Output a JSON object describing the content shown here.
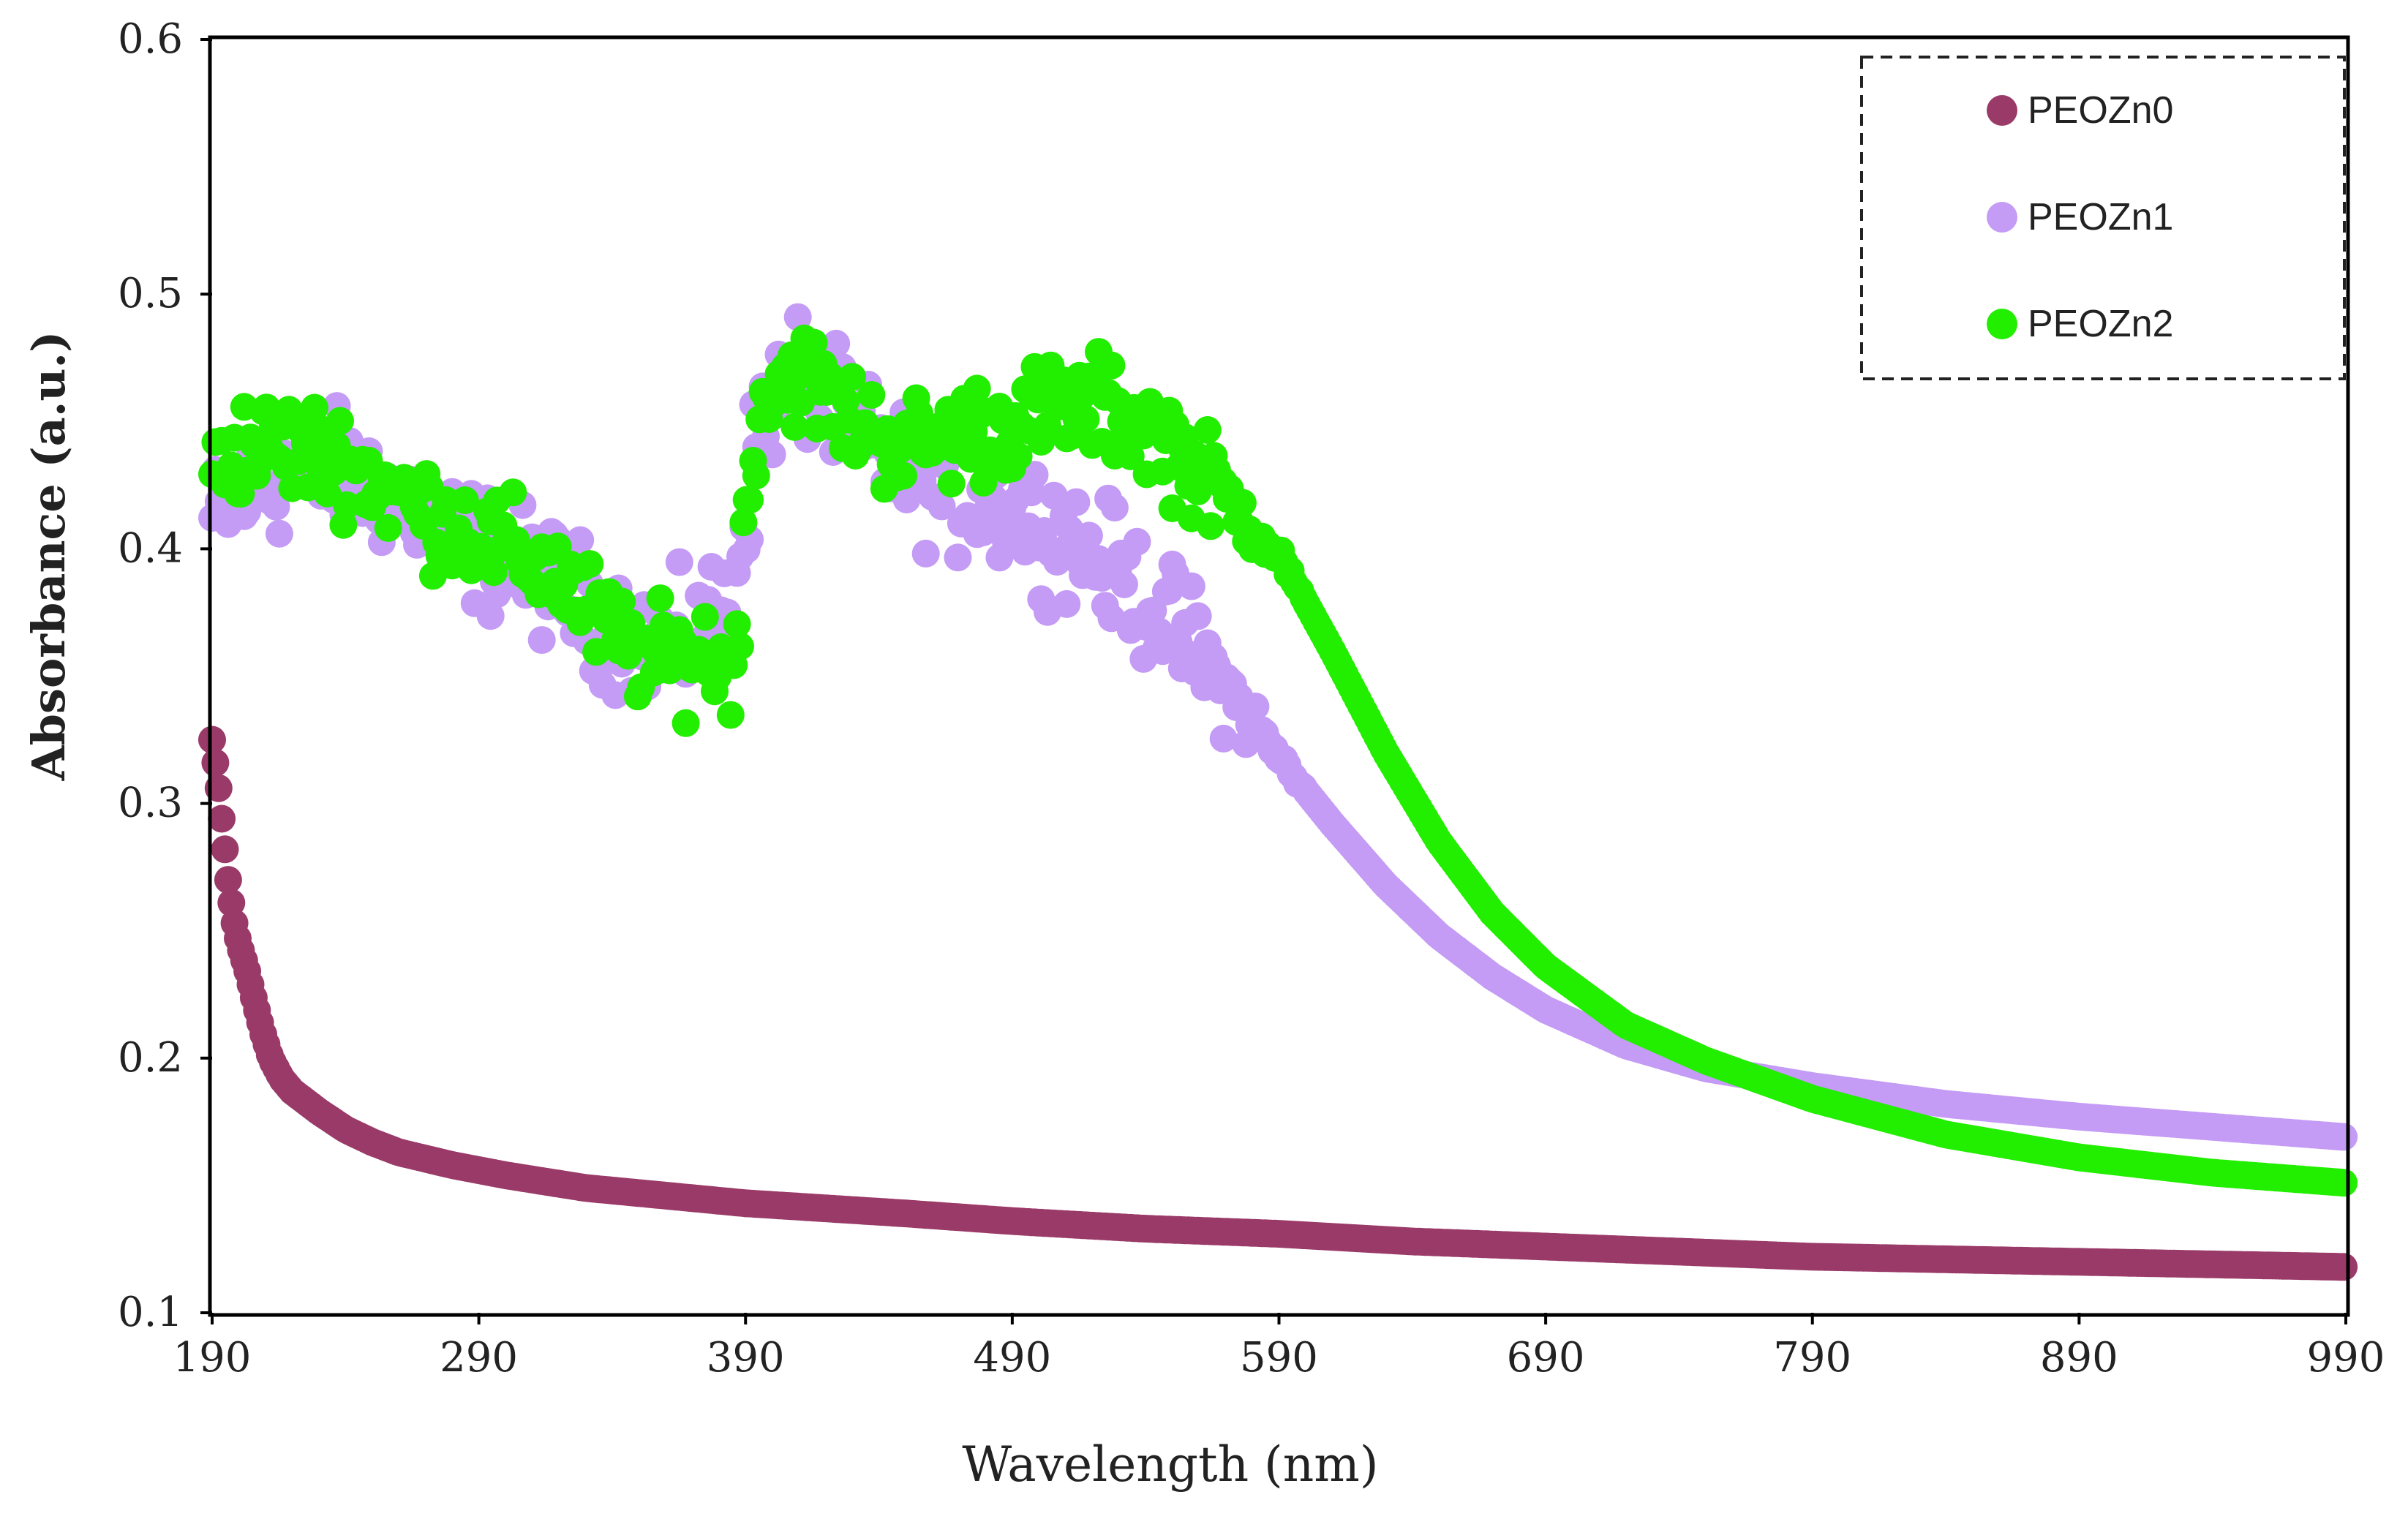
{
  "chart_data": {
    "type": "scatter",
    "title": "",
    "xlabel": "Wavelength (nm)",
    "ylabel": "Absorbance (a.u.)",
    "xlim": [
      190,
      990
    ],
    "ylim": [
      0.1,
      0.6
    ],
    "xticks": [
      190,
      290,
      390,
      490,
      590,
      690,
      790,
      890,
      990
    ],
    "yticks": [
      0.1,
      0.2,
      0.3,
      0.4,
      0.5,
      0.6
    ],
    "xtick_labels": [
      "190",
      "290",
      "390",
      "490",
      "590",
      "690",
      "790",
      "890",
      "990"
    ],
    "ytick_labels": [
      "0.1",
      "0.2",
      "0.3",
      "0.4",
      "0.5",
      "0.6"
    ],
    "grid": false,
    "legend_position": "top-right",
    "series": [
      {
        "name": "PEOZn0",
        "color": "#9a3a68",
        "noise": 0,
        "points": [
          [
            190,
            0.325
          ],
          [
            192,
            0.31
          ],
          [
            194,
            0.29
          ],
          [
            196,
            0.27
          ],
          [
            198,
            0.255
          ],
          [
            200,
            0.245
          ],
          [
            203,
            0.235
          ],
          [
            206,
            0.222
          ],
          [
            209,
            0.21
          ],
          [
            212,
            0.2
          ],
          [
            216,
            0.192
          ],
          [
            220,
            0.187
          ],
          [
            230,
            0.179
          ],
          [
            240,
            0.172
          ],
          [
            250,
            0.167
          ],
          [
            260,
            0.163
          ],
          [
            280,
            0.158
          ],
          [
            300,
            0.154
          ],
          [
            330,
            0.149
          ],
          [
            360,
            0.146
          ],
          [
            390,
            0.143
          ],
          [
            420,
            0.141
          ],
          [
            450,
            0.139
          ],
          [
            490,
            0.136
          ],
          [
            540,
            0.133
          ],
          [
            590,
            0.131
          ],
          [
            640,
            0.128
          ],
          [
            690,
            0.126
          ],
          [
            740,
            0.124
          ],
          [
            790,
            0.122
          ],
          [
            840,
            0.121
          ],
          [
            890,
            0.12
          ],
          [
            940,
            0.119
          ],
          [
            990,
            0.118
          ]
        ]
      },
      {
        "name": "PEOZn1",
        "color": "#c49bf5",
        "noise": 0.035,
        "points": [
          [
            190,
            0.41
          ],
          [
            200,
            0.42
          ],
          [
            220,
            0.43
          ],
          [
            240,
            0.43
          ],
          [
            260,
            0.42
          ],
          [
            280,
            0.405
          ],
          [
            300,
            0.395
          ],
          [
            320,
            0.385
          ],
          [
            340,
            0.37
          ],
          [
            360,
            0.36
          ],
          [
            375,
            0.37
          ],
          [
            385,
            0.38
          ],
          [
            395,
            0.45
          ],
          [
            410,
            0.47
          ],
          [
            430,
            0.445
          ],
          [
            450,
            0.43
          ],
          [
            470,
            0.42
          ],
          [
            490,
            0.415
          ],
          [
            510,
            0.405
          ],
          [
            530,
            0.39
          ],
          [
            550,
            0.37
          ],
          [
            570,
            0.345
          ],
          [
            590,
            0.318
          ],
          [
            610,
            0.292
          ],
          [
            630,
            0.268
          ],
          [
            650,
            0.248
          ],
          [
            670,
            0.232
          ],
          [
            690,
            0.219
          ],
          [
            720,
            0.205
          ],
          [
            750,
            0.196
          ],
          [
            790,
            0.189
          ],
          [
            840,
            0.182
          ],
          [
            890,
            0.177
          ],
          [
            940,
            0.173
          ],
          [
            990,
            0.169
          ]
        ]
      },
      {
        "name": "PEOZn2",
        "color": "#22ee00",
        "noise": 0.03,
        "points": [
          [
            190,
            0.43
          ],
          [
            200,
            0.44
          ],
          [
            220,
            0.44
          ],
          [
            240,
            0.435
          ],
          [
            260,
            0.42
          ],
          [
            280,
            0.41
          ],
          [
            300,
            0.4
          ],
          [
            320,
            0.39
          ],
          [
            340,
            0.365
          ],
          [
            360,
            0.355
          ],
          [
            375,
            0.36
          ],
          [
            385,
            0.35
          ],
          [
            395,
            0.46
          ],
          [
            410,
            0.47
          ],
          [
            430,
            0.45
          ],
          [
            450,
            0.44
          ],
          [
            470,
            0.445
          ],
          [
            490,
            0.45
          ],
          [
            510,
            0.455
          ],
          [
            530,
            0.455
          ],
          [
            550,
            0.44
          ],
          [
            570,
            0.42
          ],
          [
            590,
            0.398
          ],
          [
            610,
            0.36
          ],
          [
            630,
            0.32
          ],
          [
            650,
            0.285
          ],
          [
            670,
            0.257
          ],
          [
            690,
            0.236
          ],
          [
            720,
            0.213
          ],
          [
            750,
            0.199
          ],
          [
            790,
            0.184
          ],
          [
            840,
            0.17
          ],
          [
            890,
            0.161
          ],
          [
            940,
            0.155
          ],
          [
            990,
            0.151
          ]
        ]
      }
    ]
  }
}
